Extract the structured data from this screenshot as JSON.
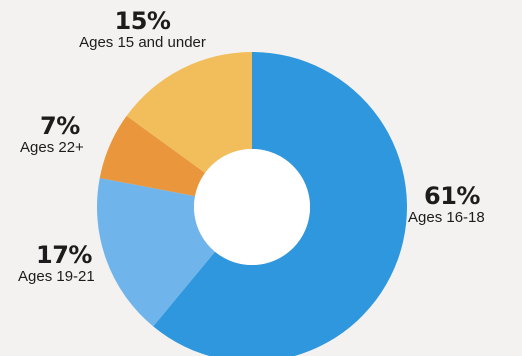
{
  "chart_data": {
    "type": "pie",
    "variant": "donut",
    "start_angle_deg": 0,
    "direction": "clockwise",
    "legend": "none",
    "slices": [
      {
        "label": "Ages 16-18",
        "value": 61,
        "pct_label": "61%",
        "color": "#2f97dd"
      },
      {
        "label": "Ages 19-21",
        "value": 17,
        "pct_label": "17%",
        "color": "#6fb4ea"
      },
      {
        "label": "Ages 22+",
        "value": 7,
        "pct_label": "7%",
        "color": "#e9963c"
      },
      {
        "label": "Ages 15 and under",
        "value": 15,
        "pct_label": "15%",
        "color": "#f2bd5b"
      }
    ]
  }
}
